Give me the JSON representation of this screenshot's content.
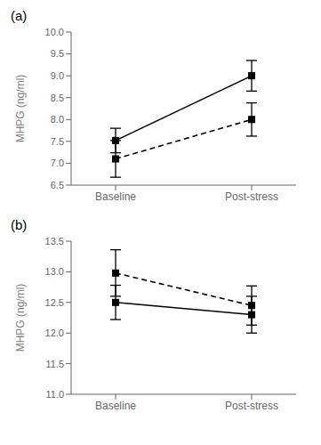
{
  "chart_data": [
    {
      "type": "line",
      "title": "(a)",
      "y_label": "MHPG (ng/ml)",
      "categories": [
        "Baseline",
        "Post-stress"
      ],
      "series": [
        {
          "color": "#000000",
          "line_style": "solid",
          "marker": "square",
          "values": [
            7.52,
            9.0
          ],
          "errors": [
            0.28,
            0.35
          ]
        },
        {
          "color": "#000000",
          "line_style": "dashed",
          "marker": "square",
          "values": [
            7.1,
            8.0
          ],
          "errors": [
            0.42,
            0.38
          ]
        }
      ],
      "ylim": [
        6.5,
        10.0
      ],
      "yticks": [
        6.5,
        {
          "value": 7.0,
          "label": "7.0"
        },
        7.5,
        {
          "value": 8.0,
          "label": "8.0"
        },
        8.5,
        {
          "value": 9.0,
          "label": "9.0"
        },
        9.5,
        {
          "value": 10.0,
          "label": "10.0"
        }
      ],
      "grid": false
    },
    {
      "type": "line",
      "title": "(b)",
      "y_label": "MHPG (ng/ml)",
      "categories": [
        "Baseline",
        "Post-stress"
      ],
      "series": [
        {
          "color": "#000000",
          "line_style": "solid",
          "marker": "square",
          "values": [
            12.5,
            12.3
          ],
          "errors": [
            0.28,
            0.3
          ]
        },
        {
          "color": "#000000",
          "line_style": "dashed",
          "marker": "square",
          "values": [
            12.98,
            12.45
          ],
          "errors": [
            0.38,
            0.32
          ]
        }
      ],
      "ylim": [
        11.0,
        13.5
      ],
      "yticks": [
        {
          "value": 11.0,
          "label": "11.0"
        },
        11.5,
        {
          "value": 12.0,
          "label": "12.0"
        },
        12.5,
        {
          "value": 13.0,
          "label": "13.0"
        },
        13.5
      ],
      "grid": false
    }
  ]
}
